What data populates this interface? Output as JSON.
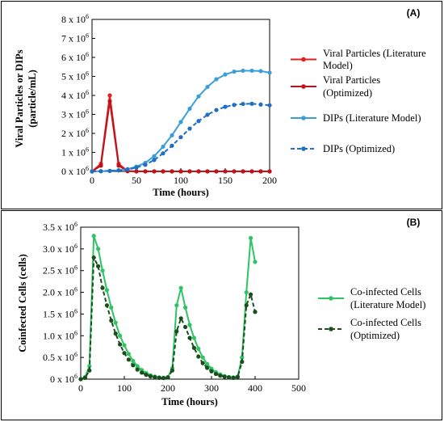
{
  "chart_data": [
    {
      "type": "line",
      "panel_label": "(A)",
      "xlabel": "Time (hours)",
      "ylabel_lines": [
        "Viral Particles or DIPs",
        "(particle/mL)"
      ],
      "xlim": [
        0,
        200
      ],
      "ylim": [
        0,
        8000000
      ],
      "xticks": [
        0,
        50,
        100,
        150,
        200
      ],
      "xtick_labels": [
        "0",
        "50",
        "100",
        "150",
        "200"
      ],
      "yticks": [
        0,
        1000000,
        2000000,
        3000000,
        4000000,
        5000000,
        6000000,
        7000000,
        8000000
      ],
      "ytick_labels": [
        {
          "base": "0 x 10",
          "exp": "6"
        },
        {
          "base": "1 x 10",
          "exp": "6"
        },
        {
          "base": "2 x 10",
          "exp": "6"
        },
        {
          "base": "3 x 10",
          "exp": "6"
        },
        {
          "base": "4 x 10",
          "exp": "6"
        },
        {
          "base": "5 x 10",
          "exp": "6"
        },
        {
          "base": "6 x 10",
          "exp": "6"
        },
        {
          "base": "7 x 10",
          "exp": "6"
        },
        {
          "base": "8 x 10",
          "exp": "6"
        }
      ],
      "grid": false,
      "legend_position": "right",
      "series": [
        {
          "legend_lines": [
            "Viral Particles (Literature",
            "Model)"
          ],
          "color": "#e02020",
          "dashed": false,
          "x": [
            0,
            10,
            20,
            30,
            40,
            50,
            60,
            70,
            80,
            90,
            100,
            110,
            120,
            130,
            140,
            150,
            160,
            170,
            180,
            190,
            200
          ],
          "y": [
            0,
            400000,
            4000000,
            400000,
            20000,
            0,
            0,
            0,
            0,
            0,
            0,
            0,
            0,
            0,
            0,
            0,
            0,
            0,
            0,
            0,
            0
          ]
        },
        {
          "legend_lines": [
            "Viral Particles",
            "(Optimized)"
          ],
          "color": "#c0141c",
          "dashed": false,
          "x": [
            0,
            10,
            20,
            30,
            40,
            50,
            60,
            70,
            80,
            90,
            100,
            110,
            120,
            130,
            140,
            150,
            160,
            170,
            180,
            190,
            200
          ],
          "y": [
            0,
            300000,
            3700000,
            300000,
            10000,
            0,
            0,
            0,
            0,
            0,
            0,
            0,
            0,
            0,
            0,
            0,
            0,
            0,
            0,
            0,
            0
          ]
        },
        {
          "legend_lines": [
            "DIPs (Literature Model)"
          ],
          "color": "#3a9fd8",
          "dashed": false,
          "x": [
            0,
            10,
            20,
            30,
            40,
            50,
            60,
            70,
            80,
            90,
            100,
            110,
            120,
            130,
            140,
            150,
            160,
            170,
            180,
            190,
            200
          ],
          "y": [
            0,
            10000,
            30000,
            60000,
            120000,
            250000,
            450000,
            800000,
            1300000,
            1900000,
            2600000,
            3300000,
            3950000,
            4450000,
            4850000,
            5100000,
            5250000,
            5300000,
            5300000,
            5280000,
            5200000
          ]
        },
        {
          "legend_lines": [
            "DIPs (Optimized)"
          ],
          "color": "#1f6fc4",
          "dashed": true,
          "x": [
            0,
            10,
            20,
            30,
            40,
            50,
            60,
            70,
            80,
            90,
            100,
            110,
            120,
            130,
            140,
            150,
            160,
            170,
            180,
            190,
            200
          ],
          "y": [
            0,
            8000,
            25000,
            50000,
            100000,
            200000,
            350000,
            600000,
            950000,
            1350000,
            1800000,
            2250000,
            2650000,
            2980000,
            3230000,
            3400000,
            3500000,
            3550000,
            3560000,
            3520000,
            3480000
          ]
        }
      ]
    },
    {
      "type": "line",
      "panel_label": "(B)",
      "xlabel": "Time (hours)",
      "ylabel_lines": [
        "Coinfected Cells (cells)"
      ],
      "xlim": [
        0,
        500
      ],
      "ylim": [
        0,
        3500000
      ],
      "xticks": [
        0,
        100,
        200,
        300,
        400,
        500
      ],
      "xtick_labels": [
        "0",
        "100",
        "200",
        "300",
        "400",
        "500"
      ],
      "yticks": [
        0,
        500000,
        1000000,
        1500000,
        2000000,
        2500000,
        3000000,
        3500000
      ],
      "ytick_labels": [
        {
          "base": "0 x 10",
          "exp": "6"
        },
        {
          "base": "0.5 x 10",
          "exp": "6"
        },
        {
          "base": "1.0 x 10",
          "exp": "6"
        },
        {
          "base": "1.5 x 10",
          "exp": "6"
        },
        {
          "base": "2.0 x 10",
          "exp": "6"
        },
        {
          "base": "2.5 x 10",
          "exp": "6"
        },
        {
          "base": "3.0 x 10",
          "exp": "6"
        },
        {
          "base": "3.5 x 10",
          "exp": "6"
        }
      ],
      "grid": false,
      "legend_position": "right",
      "series": [
        {
          "legend_lines": [
            "Co-infected Cells",
            "(Literature Model)"
          ],
          "color": "#2ec463",
          "dashed": false,
          "x": [
            0,
            10,
            20,
            30,
            40,
            50,
            60,
            70,
            80,
            90,
            100,
            110,
            120,
            130,
            140,
            150,
            160,
            170,
            180,
            190,
            200,
            210,
            220,
            230,
            240,
            250,
            260,
            270,
            280,
            290,
            300,
            310,
            320,
            330,
            340,
            350,
            360,
            370,
            380,
            390,
            400
          ],
          "y": [
            0,
            50000,
            300000,
            3300000,
            3000000,
            2500000,
            2050000,
            1650000,
            1300000,
            1000000,
            780000,
            580000,
            420000,
            300000,
            210000,
            140000,
            90000,
            60000,
            40000,
            30000,
            50000,
            250000,
            1700000,
            2100000,
            1650000,
            1250000,
            950000,
            700000,
            500000,
            350000,
            240000,
            160000,
            110000,
            70000,
            50000,
            40000,
            60000,
            500000,
            2000000,
            3250000,
            2700000
          ]
        },
        {
          "legend_lines": [
            "Co-infected Cells",
            "(Optimized)"
          ],
          "color": "#1c4d1c",
          "dashed": true,
          "x": [
            0,
            10,
            20,
            30,
            40,
            50,
            60,
            70,
            80,
            90,
            100,
            110,
            120,
            130,
            140,
            150,
            160,
            170,
            180,
            190,
            200,
            210,
            220,
            230,
            240,
            250,
            260,
            270,
            280,
            290,
            300,
            310,
            320,
            330,
            340,
            350,
            360,
            370,
            380,
            390,
            400
          ],
          "y": [
            0,
            30000,
            200000,
            2800000,
            2600000,
            2100000,
            1700000,
            1350000,
            1050000,
            800000,
            600000,
            450000,
            320000,
            220000,
            150000,
            100000,
            65000,
            45000,
            30000,
            25000,
            40000,
            200000,
            1100000,
            1400000,
            1200000,
            950000,
            720000,
            520000,
            370000,
            260000,
            180000,
            120000,
            80000,
            55000,
            40000,
            30000,
            50000,
            400000,
            1700000,
            1950000,
            1550000
          ]
        }
      ]
    }
  ]
}
